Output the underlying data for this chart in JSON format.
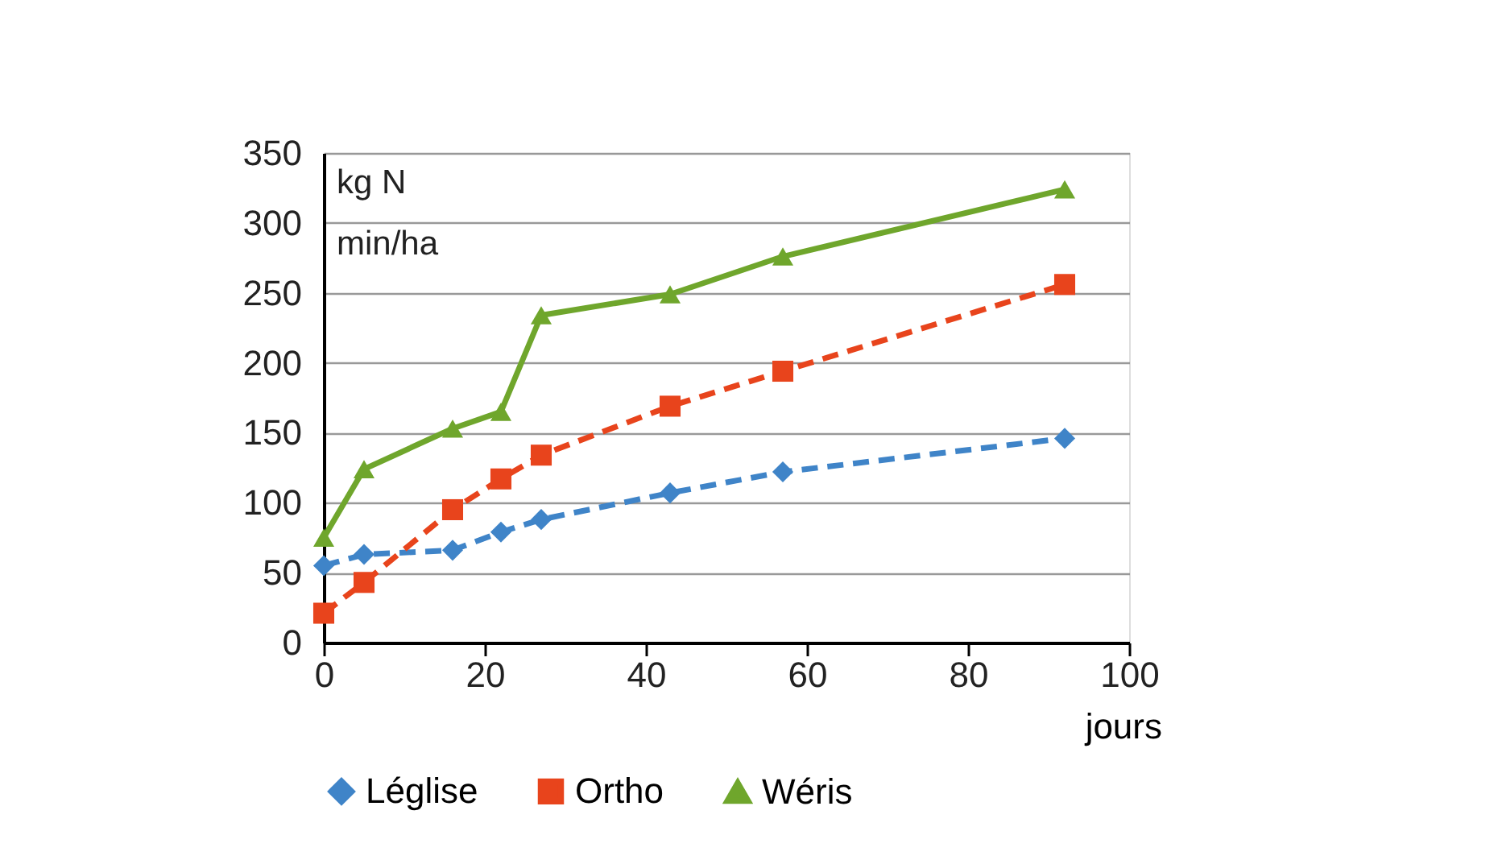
{
  "chart_data": {
    "type": "line",
    "ylabel": "kg N\nmin/ha",
    "xlabel": "jours",
    "x": [
      0,
      5,
      16,
      22,
      27,
      43,
      57,
      92
    ],
    "series": [
      {
        "name": "Léglise",
        "color": "#3f84c8",
        "values": [
          55,
          63,
          66,
          79,
          88,
          107,
          122,
          146
        ],
        "marker": "diamond",
        "line_style": "dashed"
      },
      {
        "name": "Ortho",
        "color": "#e8441c",
        "values": [
          21,
          43,
          95,
          117,
          134,
          169,
          194,
          256
        ],
        "marker": "square",
        "line_style": "dashed"
      },
      {
        "name": "Wéris",
        "color": "#6fa62c",
        "values": [
          75,
          124,
          153,
          165,
          234,
          249,
          276,
          324
        ],
        "marker": "triangle",
        "line_style": "solid"
      }
    ],
    "xlim": [
      0,
      100
    ],
    "xticks": [
      0,
      20,
      40,
      60,
      80,
      100
    ],
    "ylim": [
      0,
      350
    ],
    "yticks": [
      0,
      50,
      100,
      150,
      200,
      250,
      300,
      350
    ],
    "grid": "y",
    "legend": "bottom"
  }
}
